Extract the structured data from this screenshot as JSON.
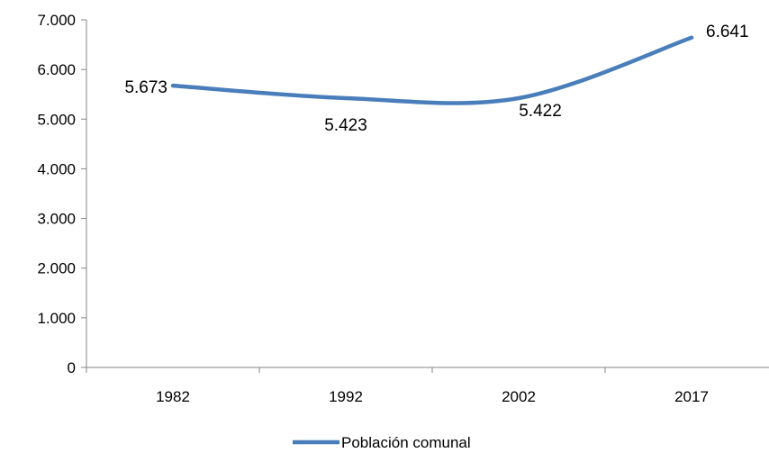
{
  "chart_data": {
    "type": "line",
    "categories": [
      "1982",
      "1992",
      "2002",
      "2017"
    ],
    "series": [
      {
        "name": "Población comunal",
        "values": [
          5673,
          5423,
          5422,
          6641
        ],
        "data_labels": [
          "5.673",
          "5.423",
          "5.422",
          "6.641"
        ],
        "color": "#4a7ebb",
        "smooth": true
      }
    ],
    "ylim": [
      0,
      7000
    ],
    "yticks": [
      0,
      1000,
      2000,
      3000,
      4000,
      5000,
      6000,
      7000
    ],
    "ytick_labels": [
      "0",
      "1.000",
      "2.000",
      "3.000",
      "4.000",
      "5.000",
      "6.000",
      "7.000"
    ],
    "grid": false,
    "legend": {
      "position": "bottom",
      "entries": [
        "Población comunal"
      ]
    }
  }
}
